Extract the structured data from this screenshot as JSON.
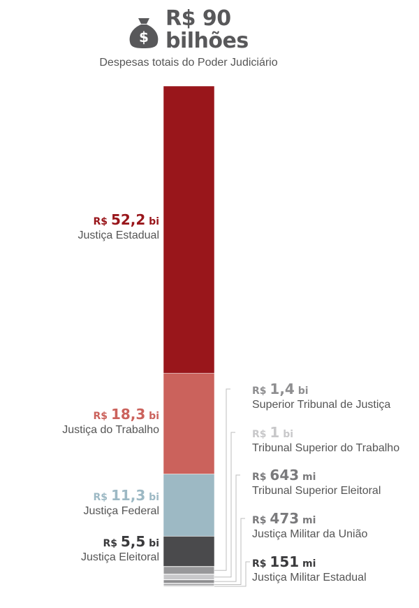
{
  "header": {
    "total_line1": "R$ 90",
    "total_line2": "bilhões",
    "subtitle": "Despesas totais do Poder Judiciário",
    "icon": "money-bag-icon"
  },
  "chart_data": {
    "type": "bar",
    "stacked": true,
    "total": 90,
    "total_unit": "R$ bilhões",
    "categories": [
      "Justiça Estadual",
      "Justiça do Trabalho",
      "Justiça Federal",
      "Justiça Eleitoral",
      "Superior Tribunal de Justiça",
      "Tribunal Superior do Trabalho",
      "Tribunal Superior Eleitoral",
      "Justiça Militar da União",
      "Justiça Militar Estadual"
    ],
    "values": [
      52.2,
      18.3,
      11.3,
      5.5,
      1.4,
      1.0,
      0.643,
      0.473,
      0.151
    ],
    "labels": [
      {
        "cur": "R$ ",
        "num": "52,2",
        "unit": " bi",
        "name": "Justiça Estadual"
      },
      {
        "cur": "R$ ",
        "num": "18,3",
        "unit": " bi",
        "name": "Justiça do Trabalho"
      },
      {
        "cur": "R$ ",
        "num": "11,3",
        "unit": " bi",
        "name": "Justiça Federal"
      },
      {
        "cur": "R$ ",
        "num": "5,5",
        "unit": " bi",
        "name": "Justiça Eleitoral"
      },
      {
        "cur": "R$ ",
        "num": "1,4",
        "unit": " bi",
        "name": "Superior Tribunal de Justiça"
      },
      {
        "cur": "R$ ",
        "num": "1",
        "unit": " bi",
        "name": "Tribunal Superior do Trabalho"
      },
      {
        "cur": "R$ ",
        "num": "643",
        "unit": " mi",
        "name": "Tribunal Superior Eleitoral"
      },
      {
        "cur": "R$ ",
        "num": "473",
        "unit": " mi",
        "name": "Justiça Militar da União"
      },
      {
        "cur": "R$ ",
        "num": "151",
        "unit": " mi",
        "name": "Justiça Militar Estadual"
      }
    ],
    "colors": [
      "#99161b",
      "#cb625c",
      "#9db9c4",
      "#4a4a4c",
      "#98989a",
      "#c8c8ca",
      "#8e8e90",
      "#b0b0b2",
      "#3a3a3c"
    ],
    "value_colors": [
      "#99161b",
      "#cb625c",
      "#9db9c4",
      "#3a3a3c",
      "#8e8e90",
      "#c8c8ca",
      "#7a7a7c",
      "#7a7a7c",
      "#3a3a3c"
    ]
  }
}
